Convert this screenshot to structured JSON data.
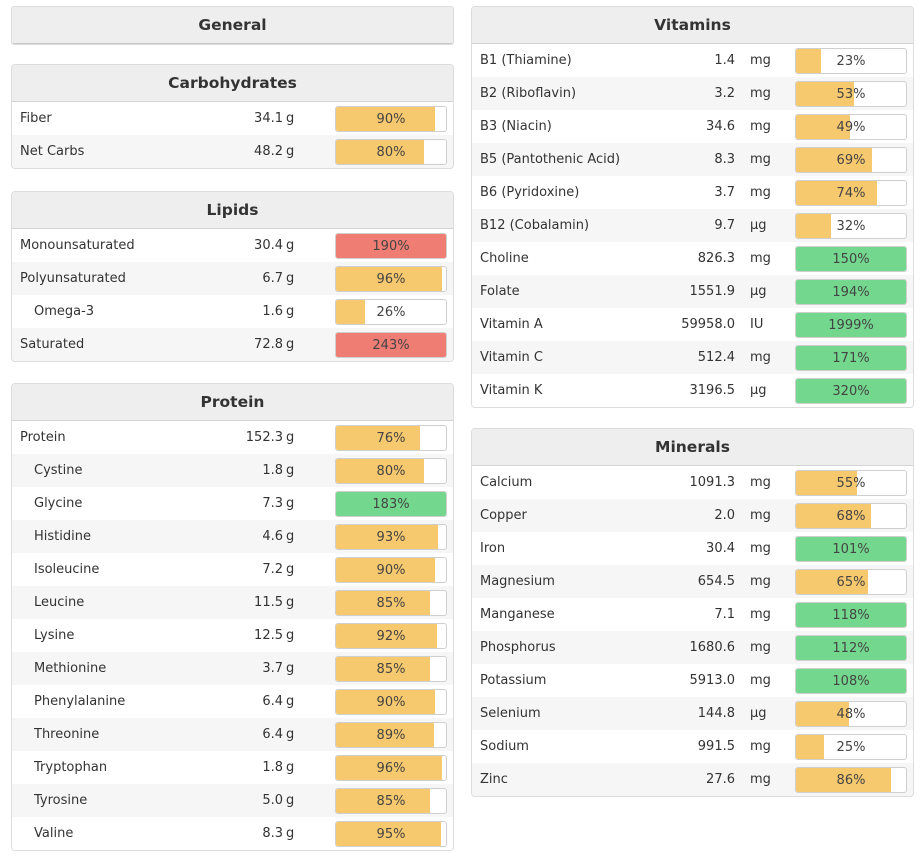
{
  "colors": {
    "yellow": "#f7c96e",
    "red": "#ef7d73",
    "green": "#73d88e"
  },
  "general": {
    "title": "General"
  },
  "carbohydrates": {
    "title": "Carbohydrates",
    "rows": [
      {
        "name": "Fiber",
        "amount": "34.1",
        "unit": "g",
        "pct": 90,
        "pct_label": "90%",
        "status": "yellow",
        "indent": false
      },
      {
        "name": "Net Carbs",
        "amount": "48.2",
        "unit": "g",
        "pct": 80,
        "pct_label": "80%",
        "status": "yellow",
        "indent": false
      }
    ]
  },
  "lipids": {
    "title": "Lipids",
    "rows": [
      {
        "name": "Monounsaturated",
        "amount": "30.4",
        "unit": "g",
        "pct": 190,
        "pct_label": "190%",
        "status": "red",
        "indent": false
      },
      {
        "name": "Polyunsaturated",
        "amount": "6.7",
        "unit": "g",
        "pct": 96,
        "pct_label": "96%",
        "status": "yellow",
        "indent": false
      },
      {
        "name": "Omega-3",
        "amount": "1.6",
        "unit": "g",
        "pct": 26,
        "pct_label": "26%",
        "status": "yellow",
        "indent": true
      },
      {
        "name": "Saturated",
        "amount": "72.8",
        "unit": "g",
        "pct": 243,
        "pct_label": "243%",
        "status": "red",
        "indent": false
      }
    ]
  },
  "protein": {
    "title": "Protein",
    "rows": [
      {
        "name": "Protein",
        "amount": "152.3",
        "unit": "g",
        "pct": 76,
        "pct_label": "76%",
        "status": "yellow",
        "indent": false
      },
      {
        "name": "Cystine",
        "amount": "1.8",
        "unit": "g",
        "pct": 80,
        "pct_label": "80%",
        "status": "yellow",
        "indent": true
      },
      {
        "name": "Glycine",
        "amount": "7.3",
        "unit": "g",
        "pct": 183,
        "pct_label": "183%",
        "status": "green",
        "indent": true
      },
      {
        "name": "Histidine",
        "amount": "4.6",
        "unit": "g",
        "pct": 93,
        "pct_label": "93%",
        "status": "yellow",
        "indent": true
      },
      {
        "name": "Isoleucine",
        "amount": "7.2",
        "unit": "g",
        "pct": 90,
        "pct_label": "90%",
        "status": "yellow",
        "indent": true
      },
      {
        "name": "Leucine",
        "amount": "11.5",
        "unit": "g",
        "pct": 85,
        "pct_label": "85%",
        "status": "yellow",
        "indent": true
      },
      {
        "name": "Lysine",
        "amount": "12.5",
        "unit": "g",
        "pct": 92,
        "pct_label": "92%",
        "status": "yellow",
        "indent": true
      },
      {
        "name": "Methionine",
        "amount": "3.7",
        "unit": "g",
        "pct": 85,
        "pct_label": "85%",
        "status": "yellow",
        "indent": true
      },
      {
        "name": "Phenylalanine",
        "amount": "6.4",
        "unit": "g",
        "pct": 90,
        "pct_label": "90%",
        "status": "yellow",
        "indent": true
      },
      {
        "name": "Threonine",
        "amount": "6.4",
        "unit": "g",
        "pct": 89,
        "pct_label": "89%",
        "status": "yellow",
        "indent": true
      },
      {
        "name": "Tryptophan",
        "amount": "1.8",
        "unit": "g",
        "pct": 96,
        "pct_label": "96%",
        "status": "yellow",
        "indent": true
      },
      {
        "name": "Tyrosine",
        "amount": "5.0",
        "unit": "g",
        "pct": 85,
        "pct_label": "85%",
        "status": "yellow",
        "indent": true
      },
      {
        "name": "Valine",
        "amount": "8.3",
        "unit": "g",
        "pct": 95,
        "pct_label": "95%",
        "status": "yellow",
        "indent": true
      }
    ]
  },
  "vitamins": {
    "title": "Vitamins",
    "rows": [
      {
        "name": "B1 (Thiamine)",
        "amount": "1.4",
        "unit": "mg",
        "pct": 23,
        "pct_label": "23%",
        "status": "yellow",
        "indent": false
      },
      {
        "name": "B2 (Riboflavin)",
        "amount": "3.2",
        "unit": "mg",
        "pct": 53,
        "pct_label": "53%",
        "status": "yellow",
        "indent": false
      },
      {
        "name": "B3 (Niacin)",
        "amount": "34.6",
        "unit": "mg",
        "pct": 49,
        "pct_label": "49%",
        "status": "yellow",
        "indent": false
      },
      {
        "name": "B5 (Pantothenic Acid)",
        "amount": "8.3",
        "unit": "mg",
        "pct": 69,
        "pct_label": "69%",
        "status": "yellow",
        "indent": false
      },
      {
        "name": "B6 (Pyridoxine)",
        "amount": "3.7",
        "unit": "mg",
        "pct": 74,
        "pct_label": "74%",
        "status": "yellow",
        "indent": false
      },
      {
        "name": "B12 (Cobalamin)",
        "amount": "9.7",
        "unit": "µg",
        "pct": 32,
        "pct_label": "32%",
        "status": "yellow",
        "indent": false
      },
      {
        "name": "Choline",
        "amount": "826.3",
        "unit": "mg",
        "pct": 150,
        "pct_label": "150%",
        "status": "green",
        "indent": false
      },
      {
        "name": "Folate",
        "amount": "1551.9",
        "unit": "µg",
        "pct": 194,
        "pct_label": "194%",
        "status": "green",
        "indent": false
      },
      {
        "name": "Vitamin A",
        "amount": "59958.0",
        "unit": "IU",
        "pct": 1999,
        "pct_label": "1999%",
        "status": "green",
        "indent": false
      },
      {
        "name": "Vitamin C",
        "amount": "512.4",
        "unit": "mg",
        "pct": 171,
        "pct_label": "171%",
        "status": "green",
        "indent": false
      },
      {
        "name": "Vitamin K",
        "amount": "3196.5",
        "unit": "µg",
        "pct": 320,
        "pct_label": "320%",
        "status": "green",
        "indent": false
      }
    ]
  },
  "minerals": {
    "title": "Minerals",
    "rows": [
      {
        "name": "Calcium",
        "amount": "1091.3",
        "unit": "mg",
        "pct": 55,
        "pct_label": "55%",
        "status": "yellow",
        "indent": false
      },
      {
        "name": "Copper",
        "amount": "2.0",
        "unit": "mg",
        "pct": 68,
        "pct_label": "68%",
        "status": "yellow",
        "indent": false
      },
      {
        "name": "Iron",
        "amount": "30.4",
        "unit": "mg",
        "pct": 101,
        "pct_label": "101%",
        "status": "green",
        "indent": false
      },
      {
        "name": "Magnesium",
        "amount": "654.5",
        "unit": "mg",
        "pct": 65,
        "pct_label": "65%",
        "status": "yellow",
        "indent": false
      },
      {
        "name": "Manganese",
        "amount": "7.1",
        "unit": "mg",
        "pct": 118,
        "pct_label": "118%",
        "status": "green",
        "indent": false
      },
      {
        "name": "Phosphorus",
        "amount": "1680.6",
        "unit": "mg",
        "pct": 112,
        "pct_label": "112%",
        "status": "green",
        "indent": false
      },
      {
        "name": "Potassium",
        "amount": "5913.0",
        "unit": "mg",
        "pct": 108,
        "pct_label": "108%",
        "status": "green",
        "indent": false
      },
      {
        "name": "Selenium",
        "amount": "144.8",
        "unit": "µg",
        "pct": 48,
        "pct_label": "48%",
        "status": "yellow",
        "indent": false
      },
      {
        "name": "Sodium",
        "amount": "991.5",
        "unit": "mg",
        "pct": 25,
        "pct_label": "25%",
        "status": "yellow",
        "indent": false
      },
      {
        "name": "Zinc",
        "amount": "27.6",
        "unit": "mg",
        "pct": 86,
        "pct_label": "86%",
        "status": "yellow",
        "indent": false
      }
    ]
  }
}
